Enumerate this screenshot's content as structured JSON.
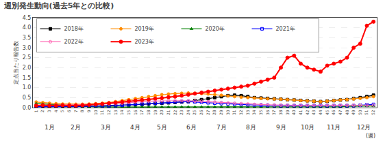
{
  "chart_data": {
    "type": "line",
    "title": "週別発生動向(過去5年との比較)",
    "ylabel": "定点当たり報告数",
    "xlabel": "(週)",
    "x": [
      1,
      2,
      3,
      4,
      5,
      6,
      7,
      8,
      9,
      10,
      11,
      12,
      13,
      14,
      15,
      16,
      17,
      18,
      19,
      20,
      21,
      22,
      23,
      24,
      25,
      26,
      27,
      28,
      29,
      30,
      31,
      32,
      33,
      34,
      35,
      36,
      37,
      38,
      39,
      40,
      41,
      42,
      43,
      44,
      45,
      46,
      47,
      48,
      49,
      50,
      51,
      52
    ],
    "xlim": [
      0.5,
      52.5
    ],
    "xticks": [
      1,
      2,
      3,
      4,
      5,
      6,
      7,
      8,
      9,
      10,
      11,
      12,
      13,
      14,
      15,
      16,
      17,
      18,
      19,
      20,
      21,
      22,
      23,
      24,
      25,
      26,
      27,
      28,
      29,
      30,
      31,
      32,
      33,
      34,
      35,
      36,
      37,
      38,
      39,
      40,
      41,
      42,
      43,
      44,
      45,
      46,
      47,
      48,
      49,
      50,
      51,
      52
    ],
    "ylim": [
      0,
      4.5
    ],
    "yticks": [
      {
        "value": 0,
        "label": "0.0"
      },
      0.5,
      {
        "value": 1.0,
        "label": "1.0"
      },
      1.5,
      {
        "value": 2.0,
        "label": "2.0"
      },
      2.5,
      {
        "value": 3.0,
        "label": "3.0"
      },
      3.5,
      {
        "value": 4.0,
        "label": "4.0"
      },
      4.5
    ],
    "grid": "y",
    "legend": "upper left",
    "annotations": [
      {
        "text": "1月",
        "x": 3
      },
      {
        "text": "2月",
        "x": 7
      },
      {
        "text": "3月",
        "x": 11.5
      },
      {
        "text": "4月",
        "x": 16
      },
      {
        "text": "5月",
        "x": 20
      },
      {
        "text": "6月",
        "x": 24.5
      },
      {
        "text": "7月",
        "x": 29
      },
      {
        "text": "8月",
        "x": 33.5
      },
      {
        "text": "9月",
        "x": 38
      },
      {
        "text": "10月",
        "x": 42
      },
      {
        "text": "11月",
        "x": 46
      },
      {
        "text": "12月",
        "x": 50.5
      }
    ],
    "series": [
      {
        "name": "2018年",
        "color": "#000000",
        "marker": "square",
        "values": [
          0.05,
          0.06,
          0.05,
          0.05,
          0.06,
          0.05,
          0.05,
          0.06,
          0.06,
          0.07,
          0.08,
          0.09,
          0.1,
          0.11,
          0.12,
          0.14,
          0.16,
          0.18,
          0.2,
          0.22,
          0.24,
          0.26,
          0.28,
          0.3,
          0.35,
          0.4,
          0.45,
          0.5,
          0.55,
          0.6,
          0.62,
          0.6,
          0.55,
          0.5,
          0.48,
          0.46,
          0.44,
          0.42,
          0.4,
          0.38,
          0.36,
          0.34,
          0.32,
          0.3,
          0.32,
          0.35,
          0.38,
          0.4,
          0.45,
          0.5,
          0.55,
          0.62
        ]
      },
      {
        "name": "2019年",
        "color": "#FF8C00",
        "marker": "circle",
        "values": [
          0.28,
          0.25,
          0.22,
          0.2,
          0.18,
          0.18,
          0.17,
          0.17,
          0.18,
          0.2,
          0.22,
          0.25,
          0.3,
          0.35,
          0.4,
          0.45,
          0.5,
          0.55,
          0.6,
          0.65,
          0.68,
          0.7,
          0.72,
          0.73,
          0.72,
          0.7,
          0.68,
          0.65,
          0.62,
          0.58,
          0.55,
          0.52,
          0.5,
          0.48,
          0.46,
          0.44,
          0.43,
          0.42,
          0.4,
          0.38,
          0.35,
          0.33,
          0.32,
          0.3,
          0.32,
          0.35,
          0.38,
          0.4,
          0.43,
          0.46,
          0.5,
          0.55
        ]
      },
      {
        "name": "2020年",
        "color": "#008000",
        "marker": "triangle-up",
        "values": [
          0.2,
          0.18,
          0.16,
          0.14,
          0.12,
          0.1,
          0.08,
          0.06,
          0.05,
          0.04,
          0.04,
          0.03,
          0.03,
          0.03,
          0.03,
          0.03,
          0.03,
          0.03,
          0.03,
          0.03,
          0.03,
          0.03,
          0.03,
          0.03,
          0.03,
          0.03,
          0.03,
          0.03,
          0.03,
          0.03,
          0.03,
          0.03,
          0.03,
          0.03,
          0.03,
          0.03,
          0.03,
          0.03,
          0.03,
          0.03,
          0.03,
          0.03,
          0.03,
          0.03,
          0.03,
          0.04,
          0.05,
          0.06,
          0.07,
          0.08,
          0.08,
          0.08
        ]
      },
      {
        "name": "2021年",
        "color": "#0000FF",
        "marker": "square-open",
        "values": [
          0.05,
          0.05,
          0.05,
          0.05,
          0.05,
          0.05,
          0.05,
          0.05,
          0.05,
          0.06,
          0.07,
          0.08,
          0.1,
          0.12,
          0.14,
          0.16,
          0.18,
          0.2,
          0.22,
          0.24,
          0.26,
          0.28,
          0.3,
          0.3,
          0.28,
          0.26,
          0.24,
          0.22,
          0.2,
          0.18,
          0.16,
          0.15,
          0.14,
          0.13,
          0.12,
          0.11,
          0.1,
          0.1,
          0.1,
          0.1,
          0.1,
          0.1,
          0.1,
          0.1,
          0.1,
          0.1,
          0.1,
          0.1,
          0.1,
          0.12,
          0.14,
          0.16
        ]
      },
      {
        "name": "2022年",
        "color": "#FF69B4",
        "marker": "circle-open",
        "values": [
          0.12,
          0.12,
          0.12,
          0.12,
          0.13,
          0.13,
          0.13,
          0.14,
          0.15,
          0.16,
          0.17,
          0.18,
          0.2,
          0.22,
          0.25,
          0.28,
          0.3,
          0.32,
          0.33,
          0.34,
          0.35,
          0.35,
          0.35,
          0.34,
          0.33,
          0.32,
          0.3,
          0.28,
          0.26,
          0.24,
          0.22,
          0.2,
          0.18,
          0.16,
          0.15,
          0.14,
          0.13,
          0.12,
          0.12,
          0.12,
          0.12,
          0.12,
          0.12,
          0.12,
          0.12,
          0.12,
          0.12,
          0.12,
          0.12,
          0.12,
          0.12,
          0.12
        ]
      },
      {
        "name": "2023年",
        "color": "#FF0000",
        "marker": "circle",
        "values": [
          0.1,
          0.12,
          0.1,
          0.1,
          0.12,
          0.1,
          0.1,
          0.12,
          0.14,
          0.16,
          0.18,
          0.22,
          0.25,
          0.28,
          0.32,
          0.35,
          0.38,
          0.4,
          0.45,
          0.48,
          0.52,
          0.55,
          0.6,
          0.65,
          0.7,
          0.75,
          0.8,
          0.85,
          0.9,
          0.95,
          1.0,
          1.05,
          1.1,
          1.2,
          1.3,
          1.4,
          1.5,
          2.0,
          2.5,
          2.6,
          2.2,
          2.0,
          1.9,
          1.8,
          2.1,
          2.2,
          2.3,
          2.5,
          3.0,
          3.2,
          4.1,
          4.3
        ]
      }
    ]
  }
}
